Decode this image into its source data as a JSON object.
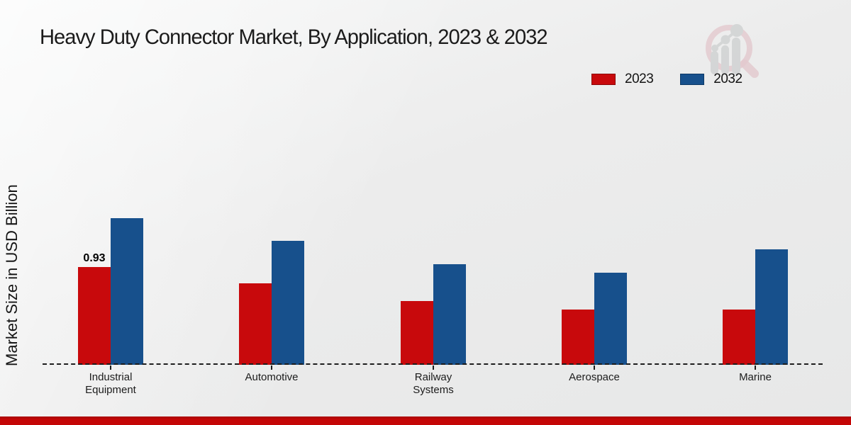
{
  "chart_data": {
    "type": "bar",
    "title": "Heavy Duty Connector Market, By Application, 2023 & 2032",
    "ylabel": "Market Size in USD Billion",
    "xlabel": "",
    "categories": [
      "Industrial Equipment",
      "Automotive",
      "Railway Systems",
      "Aerospace",
      "Marine"
    ],
    "series": [
      {
        "name": "2023",
        "color": "#c8090c",
        "border": "#8c0609",
        "values": [
          0.93,
          0.78,
          0.61,
          0.53,
          0.53
        ]
      },
      {
        "name": "2032",
        "color": "#17508c",
        "border": "#0e3a66",
        "values": [
          1.4,
          1.18,
          0.96,
          0.88,
          1.1
        ]
      }
    ],
    "data_labels": [
      {
        "series": "2023",
        "category": "Industrial Equipment",
        "text": "0.93"
      }
    ],
    "ylim": [
      0,
      1.55
    ],
    "grid": false,
    "legend_position": "top-right",
    "baseline_style": "dashed",
    "units": "USD Billion"
  },
  "legend": {
    "items": [
      {
        "label": "2023",
        "color": "#c8090c",
        "border": "#8c0609"
      },
      {
        "label": "2032",
        "color": "#17508c",
        "border": "#0e3a66"
      }
    ]
  },
  "watermark": {
    "name": "magnifier-bar-chart-logo"
  },
  "footer": {
    "accent_color": "#c40606"
  }
}
